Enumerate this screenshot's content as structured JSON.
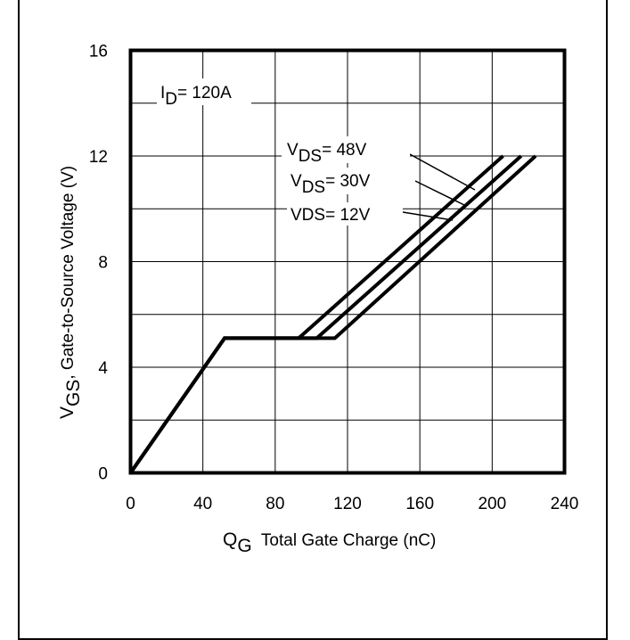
{
  "chart_data": {
    "type": "line",
    "title": "",
    "x_axis": {
      "label_main": "Q",
      "label_sub": "G",
      "label_rest": "  Total Gate Charge (nC)",
      "ticks": [
        "0",
        "40",
        "80",
        "120",
        "160",
        "200",
        "240"
      ],
      "range": [
        0,
        240
      ]
    },
    "y_axis": {
      "label_main": "V",
      "label_sub": "GS",
      "label_rest": ", Gate-to-Source Voltage (V)",
      "ticks": [
        "0",
        "4",
        "8",
        "12",
        "16"
      ],
      "range": [
        0,
        16
      ]
    },
    "grid": true,
    "id_label": {
      "main": "I",
      "sub": "D",
      "rest": "= 120A"
    },
    "series": [
      {
        "name": "VDS= 48V",
        "x": [
          0,
          52,
          93,
          206
        ],
        "y": [
          0,
          5.1,
          5.1,
          12
        ]
      },
      {
        "name": "VDS= 30V",
        "x": [
          0,
          52,
          103,
          216
        ],
        "y": [
          0,
          5.1,
          5.1,
          12
        ]
      },
      {
        "name": "VDS= 12V",
        "x": [
          0,
          52,
          113,
          224
        ],
        "y": [
          0,
          5.1,
          5.1,
          12
        ]
      }
    ],
    "annotations": [
      {
        "main": "V",
        "sub": "DS",
        "rest": "= 48V"
      },
      {
        "main": "V",
        "sub": "DS",
        "rest": "= 30V"
      },
      {
        "main": "",
        "sub": "",
        "rest": "VDS= 12V"
      }
    ]
  }
}
